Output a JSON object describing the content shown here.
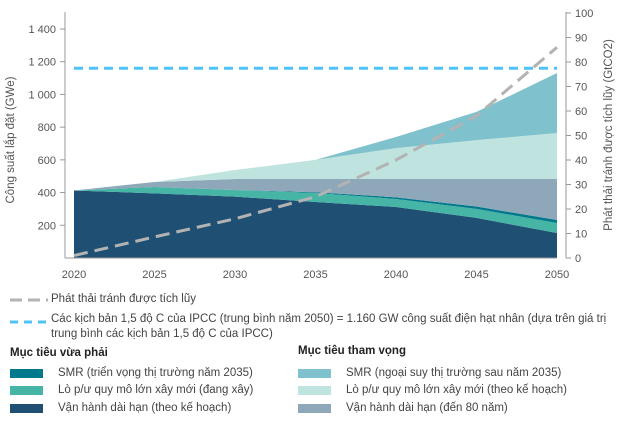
{
  "chart_data": {
    "type": "area",
    "categories": [
      2020,
      2025,
      2030,
      2035,
      2040,
      2045,
      2050
    ],
    "ylabel": "Công suất lắp đặt (GWe)",
    "y2label": "Phát thải tránh được tích lũy (GtCO2)",
    "ylim": [
      0,
      1400
    ],
    "y2lim": [
      0,
      100
    ],
    "yticks": [
      "200",
      "400",
      "600",
      "800",
      "1 000",
      "1 200",
      "1 400"
    ],
    "y2ticks": [
      "0",
      "10",
      "20",
      "30",
      "40",
      "50",
      "60",
      "70",
      "80",
      "90",
      "100"
    ],
    "xticks": [
      "2020",
      "2025",
      "2030",
      "2035",
      "2040",
      "2045",
      "2050"
    ],
    "stacked_series": [
      {
        "name": "Vận hành dài hạn (theo kế hoạch)",
        "color": "#1f5073",
        "values": [
          413,
          395,
          375,
          342,
          312,
          245,
          153
        ]
      },
      {
        "name": "Lò p/ư quy mô lớn xây mới (đang xây)",
        "color": "#46b5a6",
        "values": [
          0,
          39,
          41,
          55,
          49,
          55,
          61
        ]
      },
      {
        "name": "SMR (triển vọng thị trường năm 2035)",
        "color": "#00798c",
        "values": [
          0,
          0,
          0,
          5,
          10,
          15,
          18
        ]
      },
      {
        "name": "Vận hành dài hạn (đến 80 năm)",
        "color": "#8ea8ba",
        "values": [
          0,
          31,
          67,
          81,
          112,
          168,
          251
        ]
      },
      {
        "name": "Lò p/ư quy mô lớn xây mới (theo kế hoạch)",
        "color": "#bfe3de",
        "values": [
          0,
          0,
          55,
          117,
          189,
          238,
          281
        ]
      },
      {
        "name": "SMR (ngoại suy thị trường sau năm 2035)",
        "color": "#7fc1cc",
        "values": [
          0,
          0,
          0,
          0,
          68,
          172,
          367
        ]
      }
    ],
    "line_series": {
      "name": "Phát thải tránh được tích lũy",
      "axis": "right",
      "color": "#b3b3b3",
      "values": [
        1,
        8.6,
        16,
        25,
        40,
        58,
        86
      ]
    },
    "reference_line": {
      "value": 1160,
      "color": "#4fc3f7"
    }
  },
  "legend": {
    "line1": "Phát thải tránh được tích lũy",
    "line2": "Các kịch bản 1,5 độ C của IPCC (trung bình năm 2050) = 1.160 GW công suất điện hạt nhân (dựa trên giá trị trung bình các kịch bản 1,5 độ C của IPCC)",
    "moderate_title": "Mục tiêu vừa phải",
    "ambitious_title": "Mục tiêu tham vọng"
  }
}
